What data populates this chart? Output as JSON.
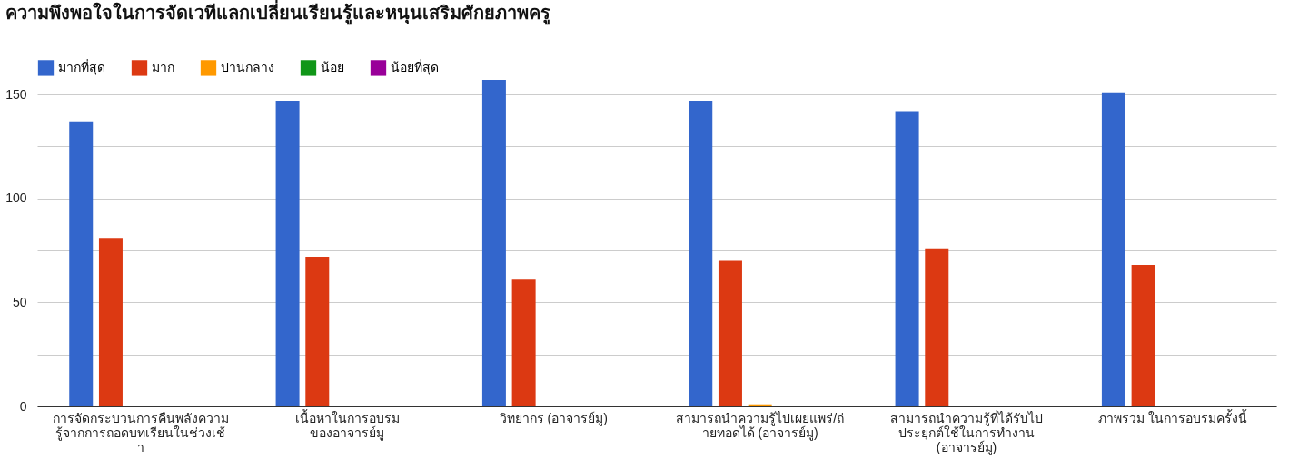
{
  "chart_data": {
    "type": "bar",
    "title": "ความพึงพอใจในการจัดเวทีแลกเปลี่ยนเรียนรู้และหนุนเสริมศักยภาพครู",
    "categories": [
      "การจัดกระบวนการคืนพลังความรู้จากการถอดบทเรียนในช่วงเช้า",
      "เนื้อหาในการอบรม ของอาจารย์มู",
      "วิทยากร (อาจารย์มู)",
      "สามารถนำความรู้ไปเผยแพร่/ถ่ายทอดได้ (อาจารย์มู)",
      "สามารถนำความรู้ที่ได้รับไปประยุกต์ใช้ในการทำงาน (อาจารย์มู)",
      "ภาพรวม ในการอบรมครั้งนี้"
    ],
    "series": [
      {
        "name": "มากที่สุด",
        "color": "#3366cc",
        "values": [
          137,
          147,
          157,
          147,
          142,
          151
        ]
      },
      {
        "name": "มาก",
        "color": "#dc3912",
        "values": [
          81,
          72,
          61,
          70,
          76,
          68
        ]
      },
      {
        "name": "ปานกลาง",
        "color": "#ff9900",
        "values": [
          0,
          0,
          0,
          1,
          0,
          0
        ]
      },
      {
        "name": "น้อย",
        "color": "#109618",
        "values": [
          0,
          0,
          0,
          0,
          0,
          0
        ]
      },
      {
        "name": "น้อยที่สุด",
        "color": "#990099",
        "values": [
          0,
          0,
          0,
          0,
          0,
          0
        ]
      }
    ],
    "ylim": [
      0,
      157
    ],
    "yticks": [
      0,
      {
        "value": 25,
        "label": null
      },
      50,
      {
        "value": 75,
        "label": null
      },
      100,
      {
        "value": 125,
        "label": null
      },
      150
    ],
    "grid": "y",
    "legend": "top left"
  }
}
